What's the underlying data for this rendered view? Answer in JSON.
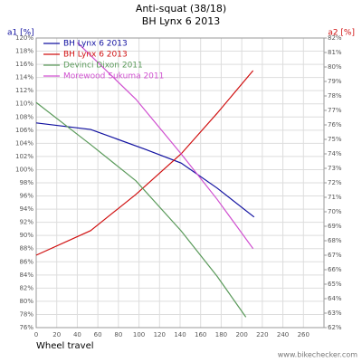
{
  "chart_data": {
    "type": "line",
    "title": "Anti-squat (38/18)",
    "subtitle": "BH Lynx 6 2013",
    "y_label": "a1 [%]",
    "y2_label": "a2 [%]",
    "x_label": "Wheel travel",
    "footer": "www.bikechecker.com",
    "xlim": [
      0,
      280
    ],
    "xticks": [
      0,
      20,
      40,
      60,
      80,
      100,
      120,
      140,
      160,
      180,
      200,
      220,
      240,
      260
    ],
    "ylim": [
      76,
      120
    ],
    "yticks": [
      {
        "value": 76,
        "label": "76%"
      },
      {
        "value": 78,
        "label": "78%"
      },
      {
        "value": 80,
        "label": "80%"
      },
      {
        "value": 82,
        "label": "82%"
      },
      {
        "value": 84,
        "label": "84%"
      },
      {
        "value": 86,
        "label": "86%"
      },
      {
        "value": 88,
        "label": "88%"
      },
      {
        "value": 90,
        "label": "90%"
      },
      {
        "value": 92,
        "label": "92%"
      },
      {
        "value": 94,
        "label": "94%"
      },
      {
        "value": 96,
        "label": "96%"
      },
      {
        "value": 98,
        "label": "98%"
      },
      {
        "value": 100,
        "label": "100%"
      },
      {
        "value": 102,
        "label": "102%"
      },
      {
        "value": 104,
        "label": "104%"
      },
      {
        "value": 106,
        "label": "106%"
      },
      {
        "value": 108,
        "label": "108%"
      },
      {
        "value": 110,
        "label": "110%"
      },
      {
        "value": 112,
        "label": "112%"
      },
      {
        "value": 114,
        "label": "114%"
      },
      {
        "value": 116,
        "label": "116%"
      },
      {
        "value": 118,
        "label": "118%"
      },
      {
        "value": 120,
        "label": "120%"
      }
    ],
    "y2lim": [
      62,
      82
    ],
    "y2ticks": [
      {
        "value": 62,
        "label": "62%"
      },
      {
        "value": 63,
        "label": "63%"
      },
      {
        "value": 64,
        "label": "64%"
      },
      {
        "value": 65,
        "label": "65%"
      },
      {
        "value": 66,
        "label": "66%"
      },
      {
        "value": 67,
        "label": "67%"
      },
      {
        "value": 68,
        "label": "68%"
      },
      {
        "value": 69,
        "label": "69%"
      },
      {
        "value": 70,
        "label": "70%"
      },
      {
        "value": 71,
        "label": "71%"
      },
      {
        "value": 72,
        "label": "72%"
      },
      {
        "value": 73,
        "label": "73%"
      },
      {
        "value": 74,
        "label": "74%"
      },
      {
        "value": 75,
        "label": "75%"
      },
      {
        "value": 76,
        "label": "76%"
      },
      {
        "value": 77,
        "label": "77%"
      },
      {
        "value": 78,
        "label": "78%"
      },
      {
        "value": 79,
        "label": "79%"
      },
      {
        "value": 80,
        "label": "80%"
      },
      {
        "value": 81,
        "label": "81%"
      },
      {
        "value": 82,
        "label": "82%"
      }
    ],
    "grid": true,
    "legend": "top-left",
    "series": [
      {
        "name": "BH Lynx 6 2013",
        "color": "#1010a0",
        "axis": "y",
        "x": [
          0,
          53,
          106,
          141,
          176,
          212
        ],
        "values": [
          107.1,
          106.1,
          103.1,
          101.0,
          97.2,
          92.8
        ]
      },
      {
        "name": "BH Lynx 6 2013",
        "color": "#d01010",
        "axis": "y2",
        "x": [
          0,
          53,
          97,
          141,
          176,
          211
        ],
        "values": [
          67.0,
          68.7,
          71.2,
          74.0,
          76.8,
          79.75
        ]
      },
      {
        "name": "Devinci Dixon 2011",
        "color": "#5a9a5a",
        "axis": "y",
        "x": [
          0,
          53,
          97,
          141,
          176,
          204
        ],
        "values": [
          110.2,
          103.8,
          98.3,
          90.7,
          83.8,
          77.6
        ]
      },
      {
        "name": "Morewood Sukuma 2011",
        "color": "#d050d0",
        "axis": "y",
        "x": [
          40,
          97,
          141,
          176,
          211
        ],
        "values": [
          119.3,
          110.7,
          102.4,
          95.5,
          88.0
        ]
      }
    ]
  }
}
